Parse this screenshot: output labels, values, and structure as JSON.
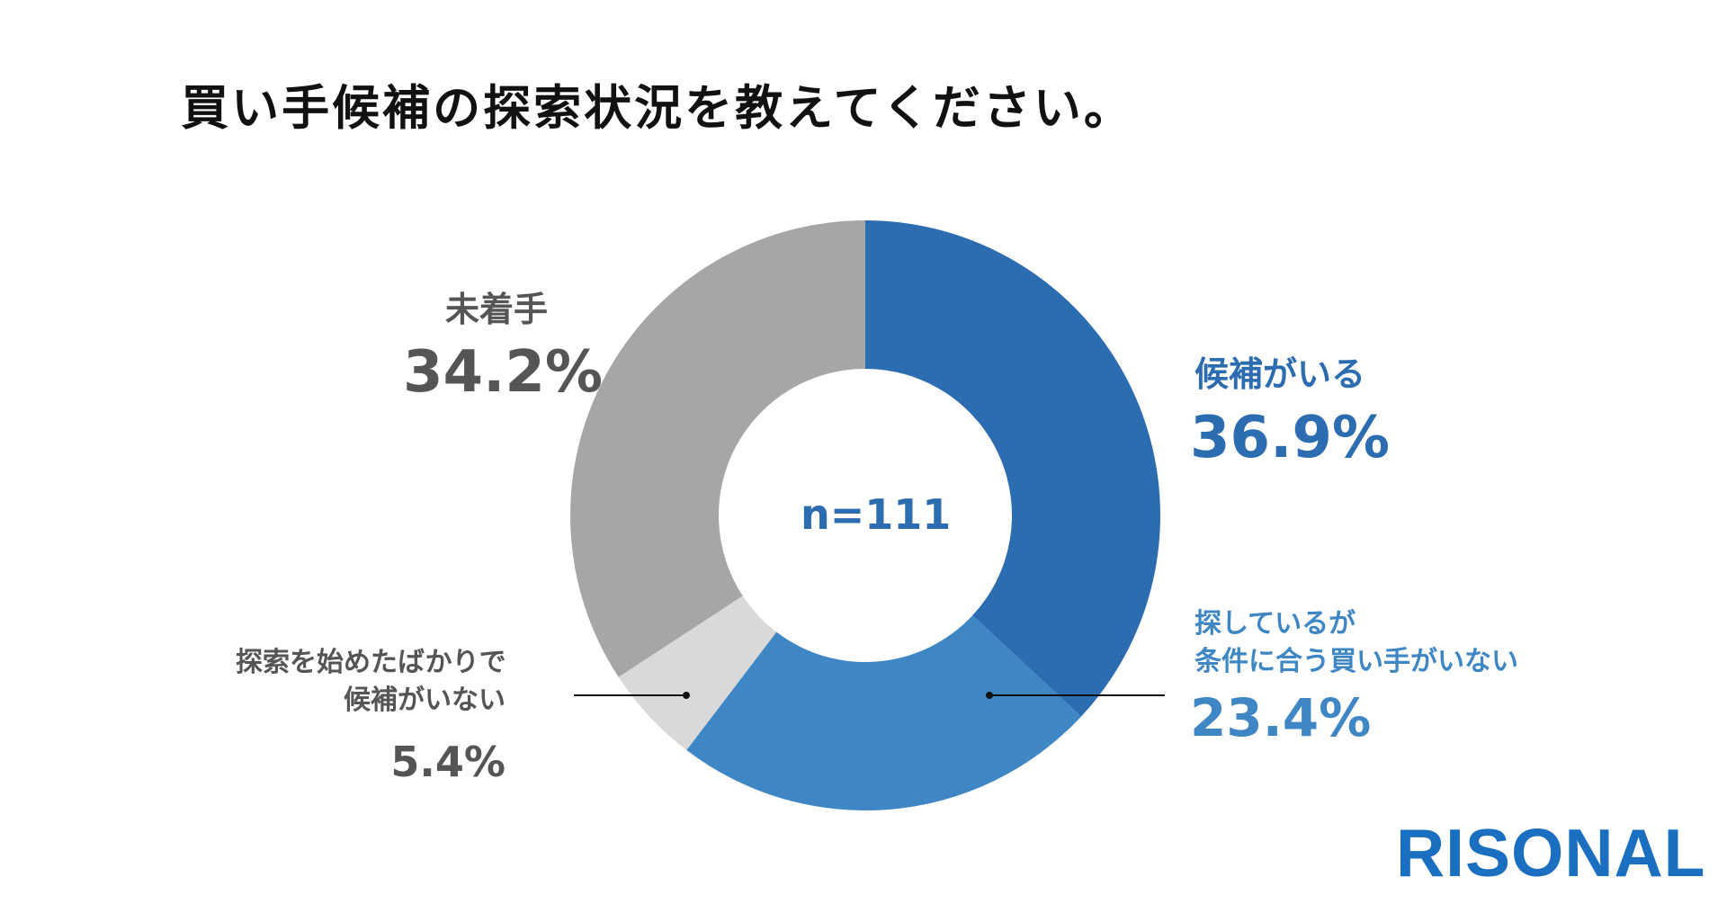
{
  "title": "買い手候補の探索状況を教えてください。",
  "chart_data": {
    "type": "pie",
    "variant": "donut",
    "center_label": "n=111",
    "slices": [
      {
        "label": "候補がいる",
        "value": 36.9,
        "value_label": "36.9%",
        "color": "#2c6cb0"
      },
      {
        "label_lines": [
          "探しているが",
          "条件に合う買い手がいない"
        ],
        "value": 23.4,
        "value_label": "23.4%",
        "color": "#3f87c4"
      },
      {
        "label_lines": [
          "探索を始めたばかりで",
          "候補がいない"
        ],
        "value": 5.4,
        "value_label": "5.4%",
        "color": "#d9d9d9"
      },
      {
        "label": "未着手",
        "value": 34.2,
        "value_label": "34.2%",
        "color": "#a6a6a6"
      }
    ]
  },
  "brand": {
    "logo_text": "RISONAL",
    "color": "#1a6fc0"
  }
}
